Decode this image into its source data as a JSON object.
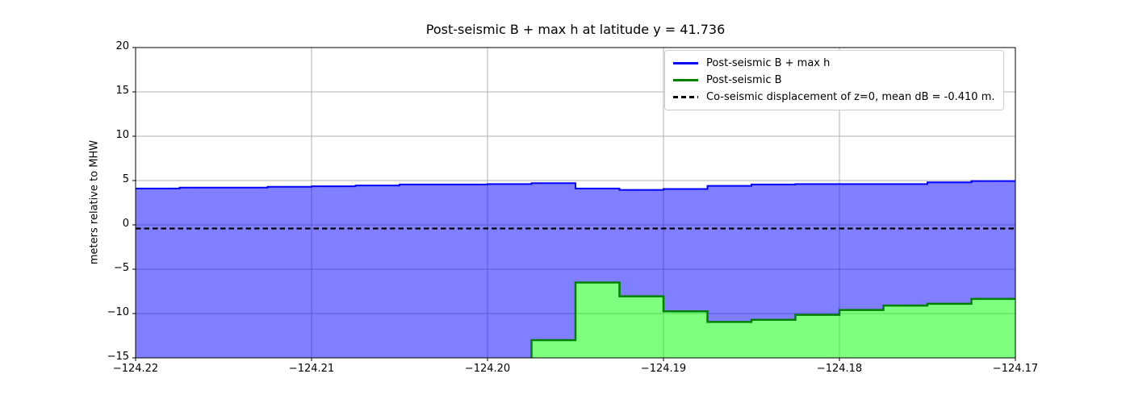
{
  "chart_data": {
    "type": "area",
    "title": "Post-seismic B + max h at latitude y = 41.736",
    "xlabel": "",
    "ylabel": "meters relative to MHW",
    "xlim": [
      -124.22,
      -124.17
    ],
    "ylim": [
      -15,
      20
    ],
    "grid": true,
    "grid_color": "#b0b0b0",
    "legend_position": "upper right",
    "xticks": [
      -124.22,
      -124.21,
      -124.2,
      -124.19,
      -124.18,
      -124.17
    ],
    "xtick_labels": [
      "−124.22",
      "−124.21",
      "−124.20",
      "−124.19",
      "−124.18",
      "−124.17"
    ],
    "yticks": [
      20,
      15,
      10,
      5,
      0,
      -5,
      -10,
      -15
    ],
    "ytick_labels": [
      "20",
      "15",
      "10",
      "5",
      "0",
      "−5",
      "−10",
      "−15"
    ],
    "x_step_edges": [
      -124.22,
      -124.2175,
      -124.215,
      -124.2125,
      -124.21,
      -124.2075,
      -124.205,
      -124.2025,
      -124.2,
      -124.1975,
      -124.195,
      -124.1925,
      -124.19,
      -124.1875,
      -124.185,
      -124.1825,
      -124.18,
      -124.1775,
      -124.175,
      -124.1725,
      -124.17
    ],
    "series": [
      {
        "name": "Post-seismic B + max h",
        "type": "step-area",
        "line_color": "#0000ff",
        "line_width": 2,
        "line_style": "solid",
        "fill_color": "#0000ff",
        "fill_opacity": 0.5,
        "values": [
          4.1,
          4.2,
          4.2,
          4.3,
          4.35,
          4.45,
          4.55,
          4.55,
          4.6,
          4.7,
          4.1,
          3.95,
          4.05,
          4.4,
          4.55,
          4.6,
          4.6,
          4.6,
          4.8,
          4.95
        ]
      },
      {
        "name": "Post-seismic B",
        "type": "step-area",
        "line_color": "#008000",
        "line_width": 2.5,
        "line_style": "solid",
        "fill_color": "#00ff00",
        "fill_opacity": 0.5,
        "values": [
          null,
          null,
          null,
          null,
          null,
          null,
          null,
          null,
          null,
          -13.0,
          -6.5,
          -8.05,
          -9.75,
          -10.95,
          -10.7,
          -10.15,
          -9.6,
          -9.1,
          -8.9,
          -8.35
        ]
      },
      {
        "name": "Co-seismic displacement of z=0, mean dB = -0.410 m.",
        "type": "hline",
        "line_color": "#000000",
        "line_width": 2.2,
        "line_style": "dashed",
        "value": -0.41
      }
    ]
  }
}
